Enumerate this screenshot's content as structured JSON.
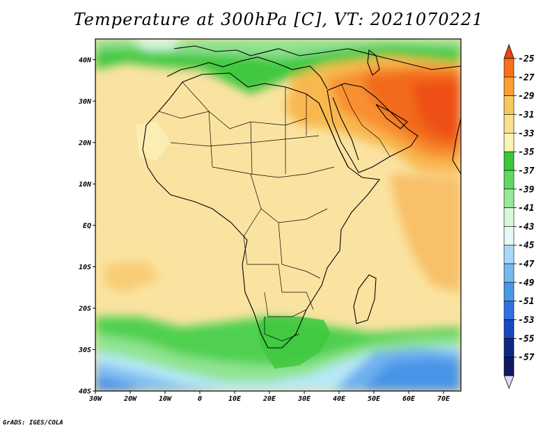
{
  "title": "Temperature at 300hPa [C], VT: 2021070221",
  "credit": "GrADS: IGES/COLA",
  "map": {
    "lon_range": [
      -30,
      75
    ],
    "lat_range": [
      -40,
      45
    ],
    "x_ticks": [
      {
        "value": -30,
        "label": "30W"
      },
      {
        "value": -20,
        "label": "20W"
      },
      {
        "value": -10,
        "label": "10W"
      },
      {
        "value": 0,
        "label": "0"
      },
      {
        "value": 10,
        "label": "10E"
      },
      {
        "value": 20,
        "label": "20E"
      },
      {
        "value": 30,
        "label": "30E"
      },
      {
        "value": 40,
        "label": "40E"
      },
      {
        "value": 50,
        "label": "50E"
      },
      {
        "value": 60,
        "label": "60E"
      },
      {
        "value": 70,
        "label": "70E"
      }
    ],
    "y_ticks": [
      {
        "value": 40,
        "label": "40N"
      },
      {
        "value": 30,
        "label": "30N"
      },
      {
        "value": 20,
        "label": "20N"
      },
      {
        "value": 10,
        "label": "10N"
      },
      {
        "value": 0,
        "label": "EQ"
      },
      {
        "value": -10,
        "label": "10S"
      },
      {
        "value": -20,
        "label": "20S"
      },
      {
        "value": -30,
        "label": "30S"
      },
      {
        "value": -40,
        "label": "40S"
      }
    ]
  },
  "colorbar": {
    "labels": [
      "-25",
      "-27",
      "-29",
      "-31",
      "-33",
      "-35",
      "-37",
      "-39",
      "-41",
      "-43",
      "-45",
      "-47",
      "-49",
      "-51",
      "-53",
      "-55",
      "-57"
    ],
    "colors": [
      "#f04018",
      "#f87018",
      "#f8a030",
      "#f8c860",
      "#f8e08c",
      "#fcf4b4",
      "#38c838",
      "#60d860",
      "#98e898",
      "#d8f8d8",
      "#e8f8f8",
      "#a8d8f8",
      "#78b8f0",
      "#4898e8",
      "#3070e0",
      "#1848c0",
      "#102880",
      "#101860",
      "#e0d8f8"
    ]
  }
}
